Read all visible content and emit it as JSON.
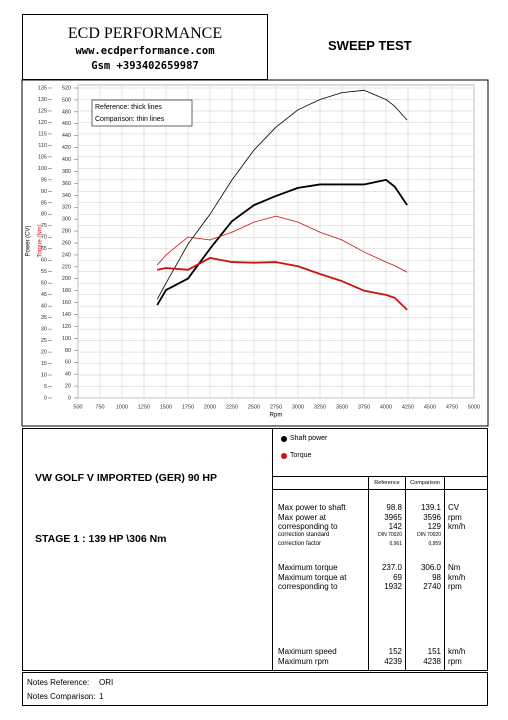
{
  "header": {
    "company": "ECD PERFORMANCE",
    "website": "www.ecdperformance.com",
    "phone": "Gsm +393402659987",
    "title": "SWEEP TEST"
  },
  "chart_data": {
    "type": "line",
    "x_label": "Rpm",
    "y_label": "Power (CV)",
    "y2_label": "Torque (Nm)",
    "x": [
      1400,
      1500,
      1750,
      2000,
      2250,
      2500,
      2750,
      3000,
      3250,
      3500,
      3750,
      4000,
      4100,
      4240
    ],
    "line_styles": {
      "reference": "Reference: thick lines",
      "comparison": "Comparison: thin lines"
    },
    "series": [
      {
        "name": "Shaft power",
        "color": "#000000",
        "axis": "y",
        "reference": [
          40.5,
          47,
          52,
          65,
          77,
          84,
          88,
          91.5,
          93,
          93,
          93,
          95,
          92,
          84
        ],
        "comparison": [
          43,
          50,
          67,
          80,
          95,
          108,
          118,
          125.5,
          130,
          133,
          134,
          130,
          127,
          121
        ]
      },
      {
        "name": "Torque",
        "color": "#cc1111",
        "axis": "y2",
        "reference": [
          215,
          218,
          215,
          235,
          228,
          227,
          228,
          221,
          208,
          196,
          180,
          173,
          168,
          148
        ],
        "comparison": [
          223,
          240,
          270,
          265,
          278,
          295,
          305,
          295,
          278,
          265,
          245,
          228,
          222,
          211
        ]
      }
    ],
    "xlim": [
      500,
      5000
    ],
    "xticks": [
      500,
      750,
      1000,
      1250,
      1500,
      1750,
      2000,
      2250,
      2500,
      2750,
      3000,
      3250,
      3500,
      3750,
      4000,
      4250,
      4500,
      4750,
      5000
    ],
    "ylim": [
      0,
      135
    ],
    "yticks": [
      0,
      5,
      10,
      15,
      20,
      25,
      30,
      35,
      40,
      45,
      50,
      55,
      60,
      65,
      70,
      75,
      80,
      85,
      90,
      95,
      100,
      105,
      110,
      115,
      120,
      125,
      130,
      135
    ],
    "y2lim": [
      0,
      520
    ],
    "y2ticks": [
      0,
      20,
      40,
      60,
      80,
      100,
      120,
      140,
      160,
      180,
      200,
      220,
      240,
      260,
      280,
      300,
      320,
      340,
      360,
      380,
      400,
      420,
      440,
      460,
      480,
      500,
      520
    ],
    "grid": true
  },
  "vehicle": {
    "model": "VW GOLF V IMPORTED (GER) 90 HP",
    "stage": "STAGE 1 : 139 HP \\306 Nm"
  },
  "table": {
    "columns": [
      "Reference",
      "Comparison"
    ],
    "groups": [
      [
        [
          "Max power to shaft",
          "98.8",
          "139.1",
          "CV"
        ],
        [
          "Max power at",
          "3965",
          "3596",
          "rpm"
        ],
        [
          "corresponding to",
          "142",
          "129",
          "km/h"
        ],
        [
          "correction standard",
          "DIN 70020",
          "DIN 70020"
        ],
        [
          "correction factor",
          "0,961",
          "0,959"
        ]
      ],
      [
        [
          "Maximum torque",
          "237.0",
          "306.0",
          "Nm"
        ],
        [
          "Maximum torque at",
          "69",
          "98",
          "km/h"
        ],
        [
          "corresponding to",
          "1932",
          "2740",
          "rpm"
        ]
      ],
      [
        [
          "Maximum speed",
          "152",
          "151",
          "km/h"
        ],
        [
          "Maximum rpm",
          "4239",
          "4238",
          "rpm"
        ]
      ]
    ]
  },
  "notes": {
    "reference_label": "Notes Reference:",
    "reference": "ORI",
    "comparison_label": "Notes Comparison:",
    "comparison": "1"
  }
}
